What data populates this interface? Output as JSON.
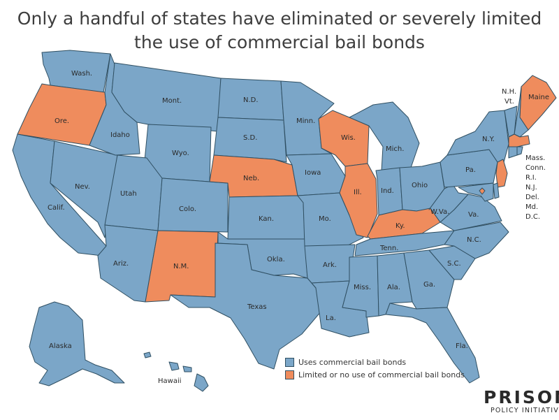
{
  "title": {
    "line1": "Only a handful of states have eliminated or severely limited",
    "line2": "the use of commercial bail bonds"
  },
  "colors": {
    "uses": "#7ba6c8",
    "limited": "#ef8c5d",
    "border": "#2f4f62"
  },
  "legend": {
    "uses_label": "Uses commercial bail bonds",
    "limited_label": "Limited or no use of commercial bail bonds"
  },
  "brand": {
    "line1": "PRISON",
    "line2": "POLICY INITIATIVE"
  },
  "states": [
    {
      "id": "wa",
      "label": "Wash.",
      "status": "uses"
    },
    {
      "id": "or",
      "label": "Ore.",
      "status": "limited"
    },
    {
      "id": "ca",
      "label": "Calif.",
      "status": "uses"
    },
    {
      "id": "nv",
      "label": "Nev.",
      "status": "uses"
    },
    {
      "id": "id",
      "label": "Idaho",
      "status": "uses"
    },
    {
      "id": "mt",
      "label": "Mont.",
      "status": "uses"
    },
    {
      "id": "wy",
      "label": "Wyo.",
      "status": "uses"
    },
    {
      "id": "ut",
      "label": "Utah",
      "status": "uses"
    },
    {
      "id": "az",
      "label": "Ariz.",
      "status": "uses"
    },
    {
      "id": "co",
      "label": "Colo.",
      "status": "uses"
    },
    {
      "id": "nm",
      "label": "N.M.",
      "status": "limited"
    },
    {
      "id": "nd",
      "label": "N.D.",
      "status": "uses"
    },
    {
      "id": "sd",
      "label": "S.D.",
      "status": "uses"
    },
    {
      "id": "ne",
      "label": "Neb.",
      "status": "limited"
    },
    {
      "id": "ks",
      "label": "Kan.",
      "status": "uses"
    },
    {
      "id": "ok",
      "label": "Okla.",
      "status": "uses"
    },
    {
      "id": "tx",
      "label": "Texas",
      "status": "uses"
    },
    {
      "id": "mn",
      "label": "Minn.",
      "status": "uses"
    },
    {
      "id": "ia",
      "label": "Iowa",
      "status": "uses"
    },
    {
      "id": "mo",
      "label": "Mo.",
      "status": "uses"
    },
    {
      "id": "ar",
      "label": "Ark.",
      "status": "uses"
    },
    {
      "id": "la",
      "label": "La.",
      "status": "uses"
    },
    {
      "id": "wi",
      "label": "Wis.",
      "status": "limited"
    },
    {
      "id": "il",
      "label": "Ill.",
      "status": "limited"
    },
    {
      "id": "mi",
      "label": "Mich.",
      "status": "uses"
    },
    {
      "id": "in",
      "label": "Ind.",
      "status": "uses"
    },
    {
      "id": "oh",
      "label": "Ohio",
      "status": "uses"
    },
    {
      "id": "ky",
      "label": "Ky.",
      "status": "limited"
    },
    {
      "id": "tn",
      "label": "Tenn.",
      "status": "uses"
    },
    {
      "id": "ms",
      "label": "Miss.",
      "status": "uses"
    },
    {
      "id": "al",
      "label": "Ala.",
      "status": "uses"
    },
    {
      "id": "ga",
      "label": "Ga.",
      "status": "uses"
    },
    {
      "id": "fl",
      "label": "Fla.",
      "status": "uses"
    },
    {
      "id": "sc",
      "label": "S.C.",
      "status": "uses"
    },
    {
      "id": "nc",
      "label": "N.C.",
      "status": "uses"
    },
    {
      "id": "va",
      "label": "Va.",
      "status": "uses"
    },
    {
      "id": "wv",
      "label": "W.Va.",
      "status": "uses"
    },
    {
      "id": "pa",
      "label": "Pa.",
      "status": "uses"
    },
    {
      "id": "ny",
      "label": "N.Y.",
      "status": "uses"
    },
    {
      "id": "me",
      "label": "Maine",
      "status": "limited"
    },
    {
      "id": "nh",
      "label": "N.H.",
      "status": "uses"
    },
    {
      "id": "vt",
      "label": "Vt.",
      "status": "uses"
    },
    {
      "id": "ma",
      "label": "Mass.",
      "status": "limited"
    },
    {
      "id": "ct",
      "label": "Conn.",
      "status": "uses"
    },
    {
      "id": "ri",
      "label": "R.I.",
      "status": "uses"
    },
    {
      "id": "nj",
      "label": "N.J.",
      "status": "limited"
    },
    {
      "id": "de",
      "label": "Del.",
      "status": "uses"
    },
    {
      "id": "md",
      "label": "Md.",
      "status": "uses"
    },
    {
      "id": "dc",
      "label": "D.C.",
      "status": "limited"
    },
    {
      "id": "ak",
      "label": "Alaska",
      "status": "uses"
    },
    {
      "id": "hi",
      "label": "Hawaii",
      "status": "uses"
    }
  ]
}
